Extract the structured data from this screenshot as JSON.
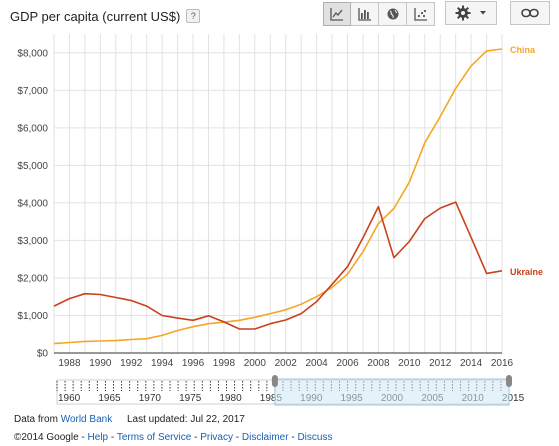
{
  "header": {
    "title": "GDP per capita (current US$)",
    "help_label": "?",
    "toolbar": [
      "line-chart-icon",
      "bar-chart-icon",
      "map-icon",
      "scatter-icon"
    ],
    "selected_tool": 0,
    "gear_icon": "gear-icon",
    "link_icon": "link-icon"
  },
  "chart_data": {
    "type": "line",
    "x": [
      1987,
      1988,
      1989,
      1990,
      1991,
      1992,
      1993,
      1994,
      1995,
      1996,
      1997,
      1998,
      1999,
      2000,
      2001,
      2002,
      2003,
      2004,
      2005,
      2006,
      2007,
      2008,
      2009,
      2010,
      2011,
      2012,
      2013,
      2014,
      2015,
      2016
    ],
    "xlim": [
      1987,
      2016
    ],
    "ylim": [
      0,
      8500
    ],
    "x_ticks": [
      "1988",
      "1990",
      "1992",
      "1994",
      "1996",
      "1998",
      "2000",
      "2002",
      "2004",
      "2006",
      "2008",
      "2010",
      "2012",
      "2014",
      "2016"
    ],
    "y_ticks": [
      "$0",
      "$1,000",
      "$2,000",
      "$3,000",
      "$4,000",
      "$5,000",
      "$6,000",
      "$7,000",
      "$8,000"
    ],
    "y_tick_values": [
      0,
      1000,
      2000,
      3000,
      4000,
      5000,
      6000,
      7000,
      8000
    ],
    "grid": true,
    "series": [
      {
        "name": "China",
        "color": "#f5a623",
        "values": [
          250,
          280,
          310,
          320,
          330,
          360,
          380,
          470,
          600,
          700,
          780,
          820,
          870,
          950,
          1050,
          1150,
          1300,
          1500,
          1750,
          2100,
          2700,
          3450,
          3850,
          4550,
          5600,
          6300,
          7050,
          7650,
          8050,
          8100
        ]
      },
      {
        "name": "Ukraine",
        "color": "#c9421a",
        "values": [
          1250,
          1450,
          1580,
          1560,
          1480,
          1400,
          1250,
          1000,
          930,
          870,
          990,
          830,
          640,
          640,
          780,
          880,
          1050,
          1370,
          1830,
          2300,
          3070,
          3900,
          2540,
          2970,
          3580,
          3860,
          4020,
          3080,
          2120,
          2190
        ]
      }
    ]
  },
  "timeline": {
    "labels": [
      "1960",
      "1965",
      "1970",
      "1975",
      "1980",
      "1985",
      "1990",
      "1995",
      "2000",
      "2005",
      "2010",
      "2015"
    ],
    "range_start": 1960,
    "range_end": 2016,
    "selected_start": 1987,
    "selected_end": 2016
  },
  "footer": {
    "data_from": "Data from",
    "source_link": "World Bank",
    "last_updated": "Last updated: Jul 22, 2017",
    "copyright": "©2014 Google -",
    "links": [
      "Help",
      "Terms of Service",
      "Privacy",
      "Disclaimer",
      "Discuss"
    ]
  }
}
